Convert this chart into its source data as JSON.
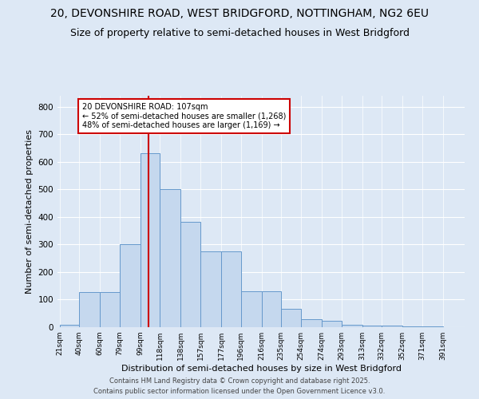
{
  "title1": "20, DEVONSHIRE ROAD, WEST BRIDGFORD, NOTTINGHAM, NG2 6EU",
  "title2": "Size of property relative to semi-detached houses in West Bridgford",
  "xlabel": "Distribution of semi-detached houses by size in West Bridgford",
  "ylabel": "Number of semi-detached properties",
  "footer1": "Contains HM Land Registry data © Crown copyright and database right 2025.",
  "footer2": "Contains public sector information licensed under the Open Government Licence v3.0.",
  "annotation_title": "20 DEVONSHIRE ROAD: 107sqm",
  "annotation_line1": "← 52% of semi-detached houses are smaller (1,268)",
  "annotation_line2": "48% of semi-detached houses are larger (1,169) →",
  "property_size": 107,
  "bar_left_edges": [
    21,
    40,
    60,
    79,
    99,
    118,
    138,
    157,
    177,
    196,
    216,
    235,
    254,
    274,
    293,
    313,
    332,
    352,
    371,
    391
  ],
  "bar_right_edges": [
    40,
    60,
    79,
    99,
    118,
    138,
    157,
    177,
    196,
    216,
    235,
    254,
    274,
    293,
    313,
    332,
    352,
    371,
    391,
    410
  ],
  "bar_heights": [
    8,
    128,
    128,
    300,
    632,
    500,
    383,
    275,
    275,
    130,
    130,
    68,
    30,
    22,
    10,
    5,
    5,
    3,
    3,
    0
  ],
  "bar_color": "#c5d8ee",
  "bar_edge_color": "#6699cc",
  "vline_x": 107,
  "vline_color": "#cc0000",
  "annotation_box_color": "#cc0000",
  "ylim": [
    0,
    840
  ],
  "yticks": [
    0,
    100,
    200,
    300,
    400,
    500,
    600,
    700,
    800
  ],
  "bg_color": "#dde8f5",
  "plot_bg_color": "#dde8f5",
  "title_fontsize": 10,
  "subtitle_fontsize": 9
}
